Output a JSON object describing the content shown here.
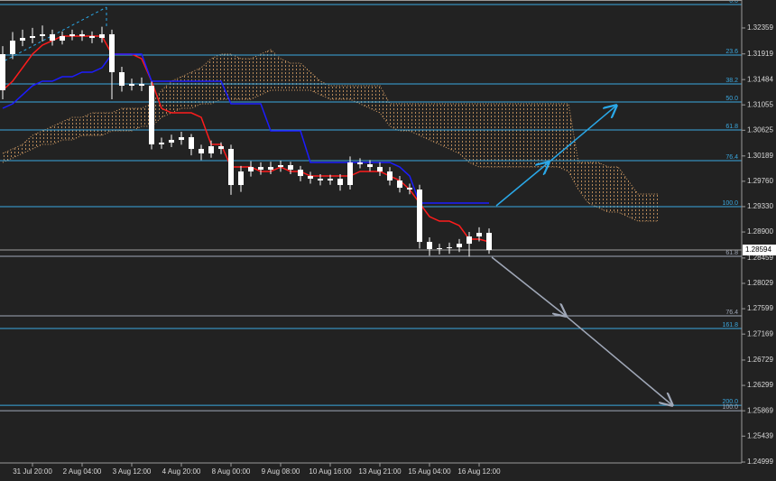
{
  "chart_data": {
    "type": "candlestick",
    "categories": [
      null,
      null,
      null,
      "31 Jul 20:00",
      null,
      null,
      null,
      null,
      "2 Aug 04:00",
      null,
      null,
      null,
      null,
      "3 Aug 12:00",
      null,
      null,
      null,
      null,
      "4 Aug 20:00",
      null,
      null,
      null,
      null,
      "8 Aug 00:00",
      null,
      null,
      null,
      null,
      "9 Aug 08:00",
      null,
      null,
      null,
      null,
      "10 Aug 16:00",
      null,
      null,
      null,
      null,
      "13 Aug 21:00",
      null,
      null,
      null,
      null,
      "15 Aug 04:00",
      null,
      null,
      null,
      null,
      "16 Aug 12:00",
      null,
      null,
      null,
      null,
      null,
      null,
      null,
      null,
      null,
      null,
      null,
      null,
      null,
      null,
      null,
      null,
      null,
      null
    ],
    "open": [
      1.31303,
      1.31915,
      1.32144,
      1.3219,
      1.32221,
      1.32252,
      1.32144,
      1.32221,
      1.32252,
      1.32221,
      1.3219,
      1.32252,
      1.31609,
      1.31379,
      1.3141,
      1.31379,
      1.30385,
      1.30415,
      1.30461,
      1.30507,
      1.30308,
      1.30232,
      1.30354,
      1.30308,
      1.29696,
      1.29926,
      1.30002,
      1.29956,
      1.30002,
      1.30033,
      1.29956,
      1.29849,
      1.29803,
      1.29773,
      1.29803,
      1.29696,
      1.30079,
      1.30048,
      1.30002,
      1.29926,
      1.29773,
      1.2965,
      1.2962,
      1.28732,
      1.2861,
      1.28625,
      1.2864,
      1.28701,
      1.28824,
      1.28885,
      null,
      null,
      null,
      null,
      null,
      null,
      null,
      null,
      null,
      null,
      null,
      null,
      null,
      null,
      null,
      null,
      null
    ],
    "high": [
      1.3205,
      1.3229,
      1.3233,
      1.3236,
      1.324,
      1.3233,
      1.323,
      1.3233,
      1.3232,
      1.323,
      1.3238,
      1.3233,
      1.317,
      1.315,
      1.3152,
      1.3145,
      1.305,
      1.3055,
      1.306,
      1.3056,
      1.3038,
      1.3045,
      1.3042,
      1.3038,
      1.3002,
      1.301,
      1.3008,
      1.3009,
      1.3011,
      1.3009,
      1.3002,
      1.2992,
      1.2988,
      1.2987,
      1.2988,
      1.3018,
      1.3015,
      1.3012,
      1.3008,
      1.3,
      1.2985,
      1.2972,
      1.297,
      1.2881,
      1.287,
      1.2872,
      1.2878,
      1.289,
      1.2898,
      1.2896,
      null,
      null,
      null,
      null,
      null,
      null,
      null,
      null,
      null,
      null,
      null,
      null,
      null,
      null,
      null,
      null,
      null
    ],
    "low": [
      1.3115,
      1.3183,
      1.3205,
      1.321,
      1.3213,
      1.3206,
      1.3208,
      1.3215,
      1.3214,
      1.321,
      1.3211,
      1.3115,
      1.3128,
      1.313,
      1.3129,
      1.303,
      1.3031,
      1.3034,
      1.3038,
      1.302,
      1.3012,
      1.3016,
      1.3022,
      1.2953,
      1.2958,
      1.2984,
      1.2987,
      1.2988,
      1.2992,
      1.2988,
      1.2976,
      1.2972,
      1.2969,
      1.297,
      1.296,
      1.2962,
      1.2998,
      1.2993,
      1.2985,
      1.2969,
      1.2957,
      1.2954,
      1.2862,
      1.285,
      1.2852,
      1.2853,
      1.2856,
      1.2848,
      1.2874,
      1.2853,
      null,
      null,
      null,
      null,
      null,
      null,
      null,
      null,
      null,
      null,
      null,
      null,
      null,
      null,
      null,
      null,
      null
    ],
    "close": [
      1.31915,
      1.32144,
      1.3219,
      1.32221,
      1.32252,
      1.32144,
      1.32221,
      1.32252,
      1.32221,
      1.3219,
      1.32252,
      1.31609,
      1.31379,
      1.3141,
      1.31379,
      1.30385,
      1.30415,
      1.30461,
      1.30507,
      1.30308,
      1.30232,
      1.30354,
      1.30308,
      1.29696,
      1.29926,
      1.30002,
      1.29956,
      1.30002,
      1.30033,
      1.29956,
      1.29849,
      1.29803,
      1.29773,
      1.29803,
      1.29696,
      1.30079,
      1.30048,
      1.30002,
      1.29926,
      1.29773,
      1.2965,
      1.2962,
      1.28732,
      1.2861,
      1.28625,
      1.2864,
      1.28701,
      1.28824,
      1.28885,
      1.28594,
      null,
      null,
      null,
      null,
      null,
      null,
      null,
      null,
      null,
      null,
      null,
      null,
      null,
      null,
      null,
      null,
      null
    ],
    "candle_color": "#ffffff",
    "series": [
      {
        "color": "#ff1c1c",
        "values": [
          1.31303,
          1.31456,
          1.31685,
          1.31915,
          1.32068,
          1.32144,
          1.32221,
          1.32221,
          1.32221,
          1.32221,
          1.32221,
          1.31915,
          1.31915,
          1.31915,
          1.31838,
          1.31456,
          1.30997,
          1.3092,
          1.3092,
          1.3092,
          1.30844,
          1.30385,
          1.30385,
          1.30002,
          1.30002,
          1.30002,
          1.29926,
          1.29926,
          1.30002,
          1.29926,
          1.29926,
          1.29849,
          1.29849,
          1.29849,
          1.29849,
          1.29849,
          1.29926,
          1.29926,
          1.29926,
          1.29849,
          1.29773,
          1.2962,
          1.2939,
          1.29161,
          1.29084,
          1.29084,
          1.29008,
          1.28778,
          1.28778,
          1.28732,
          null,
          null,
          null,
          null,
          null,
          null,
          null,
          null,
          null,
          null,
          null,
          null,
          null,
          null,
          null,
          null,
          null
        ]
      },
      {
        "color": "#1c1cff",
        "values": [
          1.30997,
          1.31073,
          1.31226,
          1.31379,
          1.31456,
          1.31456,
          1.31532,
          1.31532,
          1.31609,
          1.31609,
          1.31685,
          1.31915,
          1.31915,
          1.31915,
          1.31915,
          1.31456,
          1.31456,
          1.31456,
          1.31456,
          1.31456,
          1.31456,
          1.31456,
          1.31456,
          1.31073,
          1.31073,
          1.31073,
          1.31073,
          1.30614,
          1.30614,
          1.30614,
          1.30614,
          1.30079,
          1.30079,
          1.30079,
          1.30079,
          1.30079,
          1.30079,
          1.30079,
          1.30079,
          1.30079,
          1.30002,
          1.29849,
          1.2939,
          1.2939,
          1.2939,
          1.2939,
          1.2939,
          1.2939,
          1.2939,
          1.2939,
          null,
          null,
          null,
          null,
          null,
          null,
          null,
          null,
          null,
          null,
          null,
          null,
          null,
          null,
          null,
          null,
          null
        ]
      }
    ],
    "cloud": {
      "color": "#d9a066",
      "upper": [
        1.30232,
        1.30308,
        1.30385,
        1.30538,
        1.30614,
        1.30691,
        1.30767,
        1.30844,
        1.30844,
        1.3092,
        1.3092,
        1.3092,
        1.30997,
        1.30997,
        1.30997,
        1.31073,
        1.31303,
        1.31456,
        1.31532,
        1.31609,
        1.31685,
        1.31838,
        1.31915,
        1.31915,
        1.31838,
        1.31838,
        1.31915,
        1.31991,
        1.31838,
        1.31762,
        1.31762,
        1.31609,
        1.31456,
        1.31379,
        1.31379,
        1.31379,
        1.31379,
        1.31379,
        1.31379,
        1.31073,
        1.31073,
        1.31073,
        1.31073,
        1.31073,
        1.31073,
        1.31073,
        1.31073,
        1.31073,
        1.31073,
        1.31073,
        1.31073,
        1.31073,
        1.31073,
        1.31073,
        1.31073,
        1.31073,
        1.31073,
        1.31073,
        1.30079,
        1.30079,
        1.30079,
        1.30002,
        1.30002,
        1.29773,
        1.29543,
        1.29543,
        1.29543
      ],
      "lower": [
        1.30079,
        1.30155,
        1.30232,
        1.30308,
        1.30385,
        1.30385,
        1.30461,
        1.30461,
        1.30538,
        1.30538,
        1.30538,
        1.30614,
        1.30614,
        1.30614,
        1.30691,
        1.30691,
        1.30844,
        1.3092,
        1.30997,
        1.30997,
        1.31073,
        1.31073,
        1.3115,
        1.3115,
        1.3115,
        1.3115,
        1.31226,
        1.31303,
        1.31303,
        1.31303,
        1.31303,
        1.31303,
        1.31226,
        1.3115,
        1.3115,
        1.3115,
        1.31073,
        1.30997,
        1.3092,
        1.30691,
        1.30614,
        1.30614,
        1.30538,
        1.30461,
        1.30385,
        1.30308,
        1.30232,
        1.30079,
        1.30002,
        1.30002,
        1.30002,
        1.30002,
        1.30002,
        1.30002,
        1.30002,
        1.30002,
        1.30002,
        1.29926,
        1.2962,
        1.2939,
        1.29314,
        1.29237,
        1.29237,
        1.29161,
        1.29084,
        1.29084,
        1.29084
      ]
    },
    "fib_levels": [
      {
        "label": "0.0",
        "value": 1.32757,
        "color": "#3aa8e0"
      },
      {
        "label": "23.6",
        "value": 1.319,
        "color": "#3aa8e0"
      },
      {
        "label": "38.2",
        "value": 1.3141,
        "color": "#3aa8e0"
      },
      {
        "label": "50.0",
        "value": 1.31104,
        "color": "#3aa8e0"
      },
      {
        "label": "61.8",
        "value": 1.3063,
        "color": "#3aa8e0"
      },
      {
        "label": "76.4",
        "value": 1.30109,
        "color": "#3aa8e0"
      },
      {
        "label": "100.0",
        "value": 1.29329,
        "color": "#3aa8e0"
      },
      {
        "label": "61.8",
        "value": 1.28487,
        "color": "#a0a8b8"
      },
      {
        "label": "76.4",
        "value": 1.27477,
        "color": "#a0a8b8"
      },
      {
        "label": "161.8",
        "value": 1.27263,
        "color": "#3aa8e0"
      },
      {
        "label": "200.0",
        "value": 1.25962,
        "color": "#3aa8e0"
      },
      {
        "label": "100.0",
        "value": 1.2587,
        "color": "#a0a8b8"
      }
    ],
    "last_price": 1.28594,
    "ylim": [
      1.24984,
      1.32833
    ],
    "yticks": [
      1.32359,
      1.31919,
      1.31484,
      1.31055,
      1.30625,
      1.30189,
      {
        "value": 1.2976,
        "label": "1.29760"
      },
      {
        "value": 1.2933,
        "label": "1.29330"
      },
      {
        "value": 1.289,
        "label": "1.28900"
      },
      1.28459,
      1.28029,
      1.27599,
      1.27169,
      1.26729,
      1.26299,
      1.25869,
      1.25439,
      1.24999
    ]
  }
}
